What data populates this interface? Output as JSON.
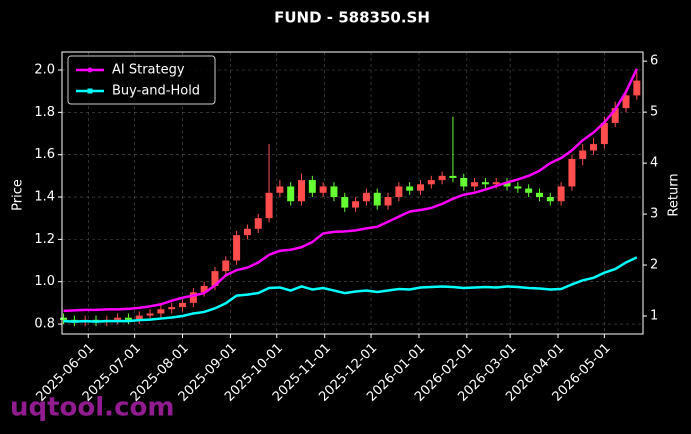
{
  "chart_data": {
    "type": "candlestick",
    "title": "FUND - 588350.SH",
    "ylabel": "Price",
    "y2label": "Return",
    "watermark": "uqtool.com",
    "x": [
      "2025-05-16",
      "2025-05-23",
      "2025-05-30",
      "2025-06-06",
      "2025-06-13",
      "2025-06-20",
      "2025-06-27",
      "2025-07-04",
      "2025-07-11",
      "2025-07-18",
      "2025-07-25",
      "2025-08-01",
      "2025-08-08",
      "2025-08-15",
      "2025-08-22",
      "2025-08-29",
      "2025-09-05",
      "2025-09-12",
      "2025-09-19",
      "2025-09-26",
      "2025-10-03",
      "2025-10-10",
      "2025-10-17",
      "2025-10-24",
      "2025-10-31",
      "2025-11-07",
      "2025-11-14",
      "2025-11-21",
      "2025-11-28",
      "2025-12-05",
      "2025-12-12",
      "2025-12-19",
      "2025-12-26",
      "2026-01-02",
      "2026-01-09",
      "2026-01-16",
      "2026-01-23",
      "2026-01-30",
      "2026-02-06",
      "2026-02-13",
      "2026-02-20",
      "2026-02-27",
      "2026-03-06",
      "2026-03-13",
      "2026-03-20",
      "2026-03-27",
      "2026-04-03",
      "2026-04-10",
      "2026-04-17",
      "2026-04-24",
      "2026-05-01",
      "2026-05-08",
      "2026-05-15",
      "2026-05-22"
    ],
    "open": [
      0.83,
      0.82,
      0.81,
      0.82,
      0.81,
      0.82,
      0.83,
      0.82,
      0.84,
      0.85,
      0.87,
      0.88,
      0.9,
      0.95,
      0.98,
      1.05,
      1.1,
      1.22,
      1.25,
      1.3,
      1.42,
      1.45,
      1.38,
      1.48,
      1.42,
      1.45,
      1.4,
      1.35,
      1.38,
      1.42,
      1.36,
      1.4,
      1.45,
      1.43,
      1.46,
      1.48,
      1.5,
      1.49,
      1.45,
      1.47,
      1.46,
      1.47,
      1.45,
      1.44,
      1.42,
      1.4,
      1.38,
      1.45,
      1.58,
      1.62,
      1.65,
      1.75,
      1.82,
      1.88
    ],
    "high": [
      0.85,
      0.84,
      0.84,
      0.84,
      0.84,
      0.85,
      0.85,
      0.86,
      0.87,
      0.89,
      0.9,
      0.92,
      0.97,
      1.0,
      1.07,
      1.12,
      1.24,
      1.27,
      1.32,
      1.65,
      1.48,
      1.47,
      1.51,
      1.5,
      1.47,
      1.47,
      1.42,
      1.4,
      1.44,
      1.44,
      1.42,
      1.47,
      1.47,
      1.48,
      1.5,
      1.52,
      1.78,
      1.51,
      1.49,
      1.49,
      1.49,
      1.49,
      1.47,
      1.46,
      1.44,
      1.42,
      1.47,
      1.6,
      1.65,
      1.68,
      1.78,
      1.85,
      1.91,
      2.0
    ],
    "low": [
      0.8,
      0.79,
      0.79,
      0.79,
      0.79,
      0.8,
      0.8,
      0.8,
      0.82,
      0.83,
      0.85,
      0.86,
      0.88,
      0.93,
      0.96,
      1.03,
      1.08,
      1.2,
      1.23,
      1.28,
      1.4,
      1.36,
      1.36,
      1.4,
      1.4,
      1.38,
      1.33,
      1.33,
      1.36,
      1.34,
      1.34,
      1.38,
      1.41,
      1.41,
      1.44,
      1.46,
      1.47,
      1.43,
      1.43,
      1.44,
      1.44,
      1.43,
      1.42,
      1.4,
      1.38,
      1.36,
      1.36,
      1.43,
      1.55,
      1.6,
      1.63,
      1.73,
      1.8,
      1.86
    ],
    "close": [
      0.82,
      0.81,
      0.82,
      0.81,
      0.82,
      0.83,
      0.82,
      0.84,
      0.85,
      0.87,
      0.88,
      0.9,
      0.95,
      0.98,
      1.05,
      1.1,
      1.22,
      1.25,
      1.3,
      1.42,
      1.45,
      1.38,
      1.48,
      1.42,
      1.45,
      1.4,
      1.35,
      1.38,
      1.42,
      1.36,
      1.4,
      1.45,
      1.43,
      1.46,
      1.48,
      1.5,
      1.49,
      1.45,
      1.47,
      1.46,
      1.47,
      1.45,
      1.44,
      1.42,
      1.4,
      1.38,
      1.45,
      1.58,
      1.62,
      1.65,
      1.75,
      1.82,
      1.88,
      1.95
    ],
    "up_color": "#ff4d4d",
    "down_color": "#66ff33",
    "series": [
      {
        "name": "AI Strategy",
        "color": "#ff00ff",
        "axis": "y2",
        "values": [
          1.1,
          1.11,
          1.12,
          1.12,
          1.13,
          1.13,
          1.14,
          1.16,
          1.19,
          1.23,
          1.3,
          1.36,
          1.4,
          1.45,
          1.6,
          1.8,
          1.9,
          1.95,
          2.05,
          2.2,
          2.28,
          2.3,
          2.35,
          2.45,
          2.62,
          2.65,
          2.66,
          2.68,
          2.72,
          2.75,
          2.85,
          2.95,
          3.05,
          3.08,
          3.12,
          3.2,
          3.3,
          3.38,
          3.42,
          3.48,
          3.55,
          3.62,
          3.68,
          3.75,
          3.85,
          4.0,
          4.1,
          4.25,
          4.45,
          4.6,
          4.8,
          5.05,
          5.4,
          5.85
        ]
      },
      {
        "name": "Buy-and-Hold",
        "color": "#00ffff",
        "axis": "y2",
        "values": [
          0.9,
          0.89,
          0.9,
          0.89,
          0.9,
          0.9,
          0.9,
          0.92,
          0.93,
          0.95,
          0.97,
          1.0,
          1.05,
          1.08,
          1.15,
          1.25,
          1.4,
          1.42,
          1.45,
          1.55,
          1.56,
          1.5,
          1.58,
          1.52,
          1.55,
          1.5,
          1.45,
          1.48,
          1.5,
          1.47,
          1.5,
          1.53,
          1.52,
          1.56,
          1.57,
          1.58,
          1.57,
          1.55,
          1.56,
          1.57,
          1.56,
          1.58,
          1.57,
          1.55,
          1.54,
          1.52,
          1.53,
          1.62,
          1.7,
          1.75,
          1.85,
          1.92,
          2.05,
          2.15
        ]
      }
    ],
    "xlim": [
      "2025-05-15",
      "2026-05-26"
    ],
    "xticks": [
      "2025-06-01",
      "2025-07-01",
      "2025-08-01",
      "2025-09-01",
      "2025-10-01",
      "2025-11-01",
      "2025-12-01",
      "2026-01-01",
      "2026-02-01",
      "2026-03-01",
      "2026-04-01",
      "2026-05-01"
    ],
    "ylim": [
      0.753,
      2.085
    ],
    "yticks": [
      0.8,
      {
        "value": 1.0,
        "label": "1.0"
      },
      1.2,
      1.4,
      1.6,
      1.8,
      {
        "value": 2.0,
        "label": "2.0"
      }
    ],
    "y2lim": [
      0.647,
      6.18
    ],
    "y2ticks": [
      1,
      2,
      3,
      4,
      5,
      6
    ],
    "grid": true,
    "legend": "upper left"
  }
}
